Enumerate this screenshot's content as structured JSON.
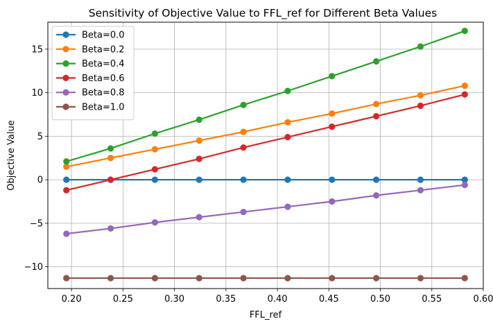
{
  "chart_data": {
    "type": "line",
    "title": "Sensitivity of Objective Value to FFL_ref for Different Beta Values",
    "xlabel": "FFL_ref",
    "ylabel": "Objective Value",
    "xlim": [
      0.177,
      0.6
    ],
    "ylim": [
      -12.5,
      18.1
    ],
    "xticks": [
      0.2,
      0.25,
      0.3,
      0.35,
      0.4,
      0.45,
      0.5,
      0.55,
      0.6
    ],
    "yticks": [
      -10,
      -5,
      0,
      5,
      10,
      15
    ],
    "grid": true,
    "legend_position": "top-left",
    "x": [
      0.195,
      0.238,
      0.281,
      0.324,
      0.367,
      0.41,
      0.453,
      0.496,
      0.539,
      0.582
    ],
    "series": [
      {
        "name": "Beta=0.0",
        "color": "#1f77b4",
        "values": [
          0,
          0,
          0,
          0,
          0,
          0,
          0,
          0,
          0,
          0
        ]
      },
      {
        "name": "Beta=0.2",
        "color": "#ff7f0e",
        "values": [
          1.5,
          2.5,
          3.5,
          4.5,
          5.5,
          6.6,
          7.6,
          8.7,
          9.7,
          10.8
        ]
      },
      {
        "name": "Beta=0.4",
        "color": "#2ca02c",
        "values": [
          2.1,
          3.6,
          5.3,
          6.9,
          8.6,
          10.2,
          11.9,
          13.6,
          15.3,
          17.1
        ]
      },
      {
        "name": "Beta=0.6",
        "color": "#d62728",
        "values": [
          -1.2,
          0.0,
          1.2,
          2.4,
          3.7,
          4.9,
          6.1,
          7.3,
          8.5,
          9.8
        ]
      },
      {
        "name": "Beta=0.8",
        "color": "#9467bd",
        "values": [
          -6.2,
          -5.6,
          -4.9,
          -4.3,
          -3.7,
          -3.1,
          -2.5,
          -1.8,
          -1.2,
          -0.6
        ]
      },
      {
        "name": "Beta=1.0",
        "color": "#8c564b",
        "values": [
          -11.3,
          -11.3,
          -11.3,
          -11.3,
          -11.3,
          -11.3,
          -11.3,
          -11.3,
          -11.3,
          -11.3
        ]
      }
    ]
  }
}
